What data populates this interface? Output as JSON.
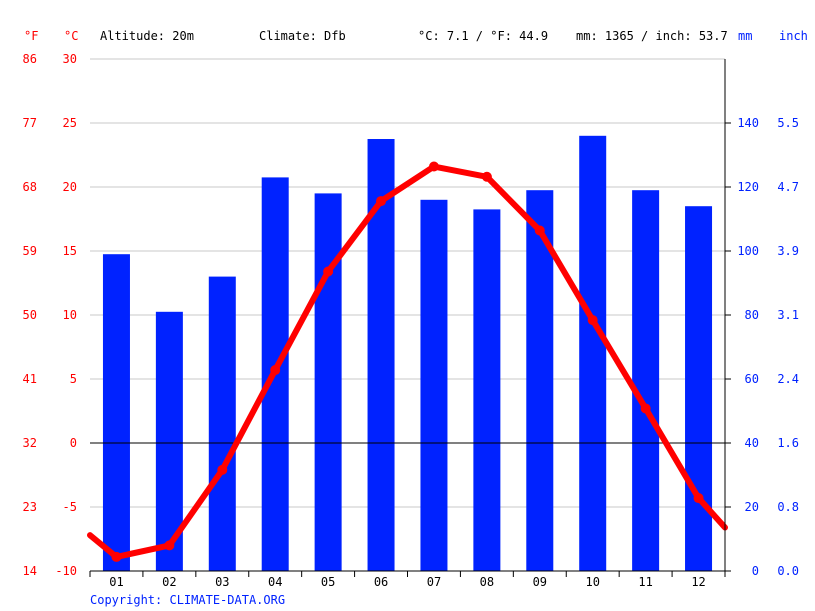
{
  "header": {
    "unit_f": "°F",
    "unit_c": "°C",
    "altitude": "Altitude: 20m",
    "climate": "Climate: Dfb",
    "temp_avg": "°C: 7.1 / °F: 44.9",
    "precip_total": "mm: 1365 / inch: 53.7",
    "unit_mm": "mm",
    "unit_inch": "inch"
  },
  "copyright": "Copyright: CLIMATE-DATA.ORG",
  "colors": {
    "temperature": "#ff0000",
    "precipitation": "#0022ff",
    "axis_text_left": "#ff0000",
    "axis_text_right": "#0022ff"
  },
  "chart_data": {
    "type": "bar+line",
    "categories": [
      "01",
      "02",
      "03",
      "04",
      "05",
      "06",
      "07",
      "08",
      "09",
      "10",
      "11",
      "12"
    ],
    "series": [
      {
        "values": [
          99,
          81,
          92,
          123,
          118,
          135,
          116,
          113,
          119,
          136,
          119,
          114
        ],
        "axis": "right",
        "unit": "mm",
        "type": "bar"
      },
      {
        "values": [
          -8.9,
          -8.0,
          -2.1,
          5.7,
          13.4,
          18.9,
          21.6,
          20.8,
          16.6,
          9.6,
          2.7,
          -4.3
        ],
        "axis": "left",
        "unit": "°C",
        "type": "line"
      }
    ],
    "temp_edge_values": {
      "start": -7.2,
      "end": -6.6
    },
    "ylim_c": [
      -10,
      30
    ],
    "ylim_mm": [
      0,
      160
    ],
    "yticks_c": [
      "-10",
      "-5",
      "0",
      "5",
      "10",
      "15",
      "20",
      "25",
      "30"
    ],
    "yticks_f": [
      "14",
      "23",
      "32",
      "41",
      "50",
      "59",
      "68",
      "77",
      "86"
    ],
    "yticks_mm": [
      "0",
      "20",
      "40",
      "60",
      "80",
      "100",
      "120",
      "140"
    ],
    "yticks_inch": [
      "0.0",
      "0.8",
      "1.6",
      "2.4",
      "3.1",
      "3.9",
      "4.7",
      "5.5"
    ],
    "grid": true
  }
}
